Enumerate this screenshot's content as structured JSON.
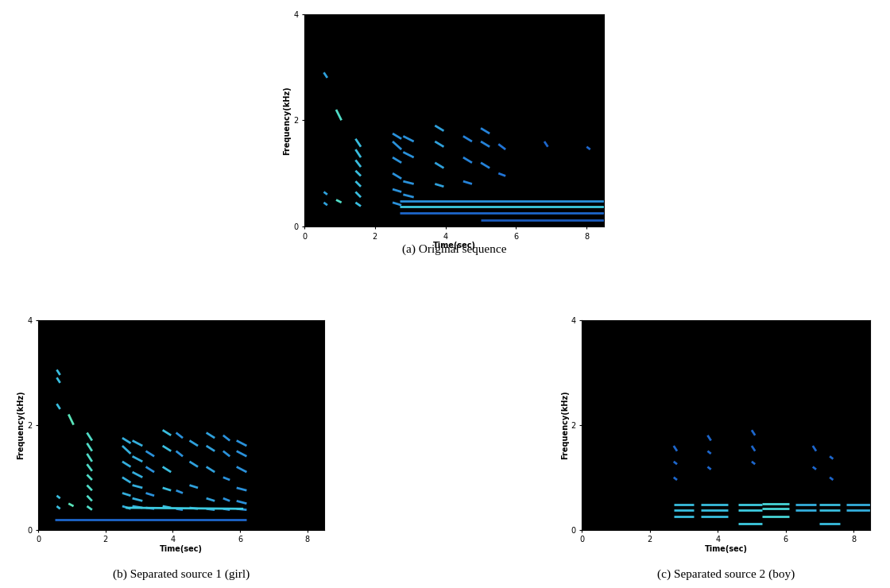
{
  "chart_data": [
    {
      "type": "spectrogram",
      "caption": "(a) Original sequence",
      "x_label": "Time(sec)",
      "y_label": "Frequency(kHz)",
      "xlim": [
        0,
        8.5
      ],
      "xticks": [
        0,
        2,
        4,
        6,
        8
      ],
      "ylim": [
        0,
        4
      ],
      "yticks": [
        0,
        2,
        4
      ],
      "bursts": [
        {
          "t": [
            0.55,
            0.65
          ],
          "f_start": [
            0.45,
            0.65,
            2.9
          ],
          "f_end": [
            0.4,
            0.6,
            2.8
          ],
          "level": 0.5
        },
        {
          "t": [
            0.9,
            1.05
          ],
          "f_start": [
            0.5,
            2.2
          ],
          "f_end": [
            0.45,
            2.0
          ],
          "level": 0.75
        },
        {
          "t": [
            1.45,
            1.6
          ],
          "f_start": [
            0.45,
            0.65,
            0.85,
            1.05,
            1.25,
            1.45,
            1.65
          ],
          "f_end": [
            0.38,
            0.55,
            0.75,
            0.95,
            1.12,
            1.3,
            1.5
          ],
          "level": 0.6
        },
        {
          "t": [
            2.5,
            2.75
          ],
          "f_start": [
            0.45,
            0.7,
            1.0,
            1.3,
            1.6,
            1.75
          ],
          "f_end": [
            0.4,
            0.65,
            0.9,
            1.2,
            1.45,
            1.65
          ],
          "level": 0.45
        },
        {
          "t": [
            2.8,
            3.1
          ],
          "f_start": [
            0.6,
            0.85,
            1.4,
            1.7
          ],
          "f_end": [
            0.55,
            0.8,
            1.3,
            1.6
          ],
          "level": 0.45
        },
        {
          "t": [
            3.7,
            3.95
          ],
          "f_start": [
            0.8,
            1.2,
            1.6,
            1.9
          ],
          "f_end": [
            0.75,
            1.1,
            1.5,
            1.8
          ],
          "level": 0.5
        },
        {
          "t": [
            4.5,
            4.75
          ],
          "f_start": [
            0.85,
            1.3,
            1.7
          ],
          "f_end": [
            0.8,
            1.2,
            1.6
          ],
          "level": 0.4
        },
        {
          "t": [
            5.0,
            5.25
          ],
          "f_start": [
            1.2,
            1.6,
            1.85
          ],
          "f_end": [
            1.1,
            1.5,
            1.75
          ],
          "level": 0.4
        },
        {
          "t": [
            5.5,
            5.7
          ],
          "f_start": [
            1.0,
            1.55
          ],
          "f_end": [
            0.95,
            1.45
          ],
          "level": 0.35
        },
        {
          "t": [
            6.8,
            6.9
          ],
          "f_start": [
            1.6
          ],
          "f_end": [
            1.5
          ],
          "level": 0.3
        },
        {
          "t": [
            8.0,
            8.1
          ],
          "f_start": [
            1.5
          ],
          "f_end": [
            1.45
          ],
          "level": 0.3
        },
        {
          "t": [
            2.7,
            8.5
          ],
          "f_start": [
            0.38
          ],
          "f_end": [
            0.38
          ],
          "level": 0.65
        },
        {
          "t": [
            2.7,
            8.5
          ],
          "f_start": [
            0.48
          ],
          "f_end": [
            0.48
          ],
          "level": 0.45
        },
        {
          "t": [
            2.7,
            8.5
          ],
          "f_start": [
            0.25
          ],
          "f_end": [
            0.25
          ],
          "level": 0.3
        },
        {
          "t": [
            5.0,
            8.5
          ],
          "f_start": [
            0.12
          ],
          "f_end": [
            0.12
          ],
          "level": 0.25
        }
      ]
    },
    {
      "type": "spectrogram",
      "caption": "(b) Separated source 1 (girl)",
      "x_label": "Time(sec)",
      "y_label": "Frequency(kHz)",
      "xlim": [
        0,
        8.5
      ],
      "xticks": [
        0,
        2,
        4,
        6,
        8
      ],
      "ylim": [
        0,
        4
      ],
      "yticks": [
        0,
        2,
        4
      ],
      "bursts": [
        {
          "t": [
            0.55,
            0.65
          ],
          "f_start": [
            0.45,
            0.65,
            2.4,
            2.9,
            3.05
          ],
          "f_end": [
            0.4,
            0.6,
            2.3,
            2.8,
            2.95
          ],
          "level": 0.6
        },
        {
          "t": [
            0.9,
            1.05
          ],
          "f_start": [
            0.5,
            2.2
          ],
          "f_end": [
            0.45,
            2.0
          ],
          "level": 0.8
        },
        {
          "t": [
            1.45,
            1.6
          ],
          "f_start": [
            0.45,
            0.65,
            0.85,
            1.05,
            1.25,
            1.45,
            1.65,
            1.85
          ],
          "f_end": [
            0.38,
            0.55,
            0.75,
            0.95,
            1.12,
            1.3,
            1.5,
            1.7
          ],
          "level": 0.75
        },
        {
          "t": [
            2.5,
            2.75
          ],
          "f_start": [
            0.45,
            0.7,
            1.0,
            1.3,
            1.6,
            1.75
          ],
          "f_end": [
            0.4,
            0.65,
            0.9,
            1.2,
            1.45,
            1.65
          ],
          "level": 0.55
        },
        {
          "t": [
            2.8,
            3.1
          ],
          "f_start": [
            0.45,
            0.6,
            0.85,
            1.1,
            1.4,
            1.7
          ],
          "f_end": [
            0.42,
            0.55,
            0.8,
            1.0,
            1.3,
            1.6
          ],
          "level": 0.55
        },
        {
          "t": [
            3.2,
            3.45
          ],
          "f_start": [
            0.42,
            0.7,
            1.2,
            1.5
          ],
          "f_end": [
            0.4,
            0.65,
            1.1,
            1.4
          ],
          "level": 0.45
        },
        {
          "t": [
            3.7,
            3.95
          ],
          "f_start": [
            0.45,
            0.8,
            1.2,
            1.6,
            1.9
          ],
          "f_end": [
            0.42,
            0.75,
            1.1,
            1.5,
            1.8
          ],
          "level": 0.6
        },
        {
          "t": [
            4.1,
            4.3
          ],
          "f_start": [
            0.4,
            0.75,
            1.5,
            1.85
          ],
          "f_end": [
            0.38,
            0.7,
            1.4,
            1.75
          ],
          "level": 0.45
        },
        {
          "t": [
            4.5,
            4.75
          ],
          "f_start": [
            0.42,
            0.85,
            1.3,
            1.7
          ],
          "f_end": [
            0.4,
            0.8,
            1.2,
            1.6
          ],
          "level": 0.5
        },
        {
          "t": [
            5.0,
            5.25
          ],
          "f_start": [
            0.4,
            0.6,
            1.2,
            1.6,
            1.85
          ],
          "f_end": [
            0.38,
            0.55,
            1.1,
            1.5,
            1.75
          ],
          "level": 0.5
        },
        {
          "t": [
            5.5,
            5.7
          ],
          "f_start": [
            0.4,
            0.6,
            1.0,
            1.5,
            1.8
          ],
          "f_end": [
            0.38,
            0.55,
            0.95,
            1.4,
            1.7
          ],
          "level": 0.45
        },
        {
          "t": [
            5.9,
            6.2
          ],
          "f_start": [
            0.4,
            0.55,
            0.8,
            1.2,
            1.5,
            1.7
          ],
          "f_end": [
            0.38,
            0.5,
            0.75,
            1.1,
            1.4,
            1.6
          ],
          "level": 0.45
        },
        {
          "t": [
            2.6,
            6.1
          ],
          "f_start": [
            0.42
          ],
          "f_end": [
            0.4
          ],
          "level": 0.65
        },
        {
          "t": [
            0.5,
            6.2
          ],
          "f_start": [
            0.2
          ],
          "f_end": [
            0.2
          ],
          "level": 0.3
        }
      ]
    },
    {
      "type": "spectrogram",
      "caption": "(c) Separated source 2 (boy)",
      "x_label": "Time(sec)",
      "y_label": "Frequency(kHz)",
      "xlim": [
        0,
        8.5
      ],
      "xticks": [
        0,
        2,
        4,
        6,
        8
      ],
      "ylim": [
        0,
        4
      ],
      "yticks": [
        0,
        2,
        4
      ],
      "bursts": [
        {
          "t": [
            2.7,
            3.3
          ],
          "f_start": [
            0.38,
            0.48,
            0.25
          ],
          "f_end": [
            0.38,
            0.48,
            0.25
          ],
          "level": 0.6
        },
        {
          "t": [
            3.5,
            4.3
          ],
          "f_start": [
            0.38,
            0.48,
            0.25
          ],
          "f_end": [
            0.38,
            0.48,
            0.25
          ],
          "level": 0.6
        },
        {
          "t": [
            4.6,
            5.3
          ],
          "f_start": [
            0.38,
            0.48,
            0.12
          ],
          "f_end": [
            0.38,
            0.48,
            0.12
          ],
          "level": 0.65
        },
        {
          "t": [
            5.3,
            6.1
          ],
          "f_start": [
            0.4,
            0.5,
            0.25
          ],
          "f_end": [
            0.4,
            0.5,
            0.25
          ],
          "level": 0.7
        },
        {
          "t": [
            6.3,
            6.9
          ],
          "f_start": [
            0.38,
            0.48
          ],
          "f_end": [
            0.38,
            0.48
          ],
          "level": 0.55
        },
        {
          "t": [
            7.0,
            7.6
          ],
          "f_start": [
            0.38,
            0.48,
            0.12
          ],
          "f_end": [
            0.38,
            0.48,
            0.12
          ],
          "level": 0.6
        },
        {
          "t": [
            7.8,
            8.5
          ],
          "f_start": [
            0.38,
            0.48
          ],
          "f_end": [
            0.38,
            0.48
          ],
          "level": 0.55
        },
        {
          "t": [
            2.7,
            2.8
          ],
          "f_start": [
            1.0,
            1.3,
            1.6
          ],
          "f_end": [
            0.95,
            1.25,
            1.5
          ],
          "level": 0.3
        },
        {
          "t": [
            3.7,
            3.8
          ],
          "f_start": [
            1.2,
            1.5,
            1.8
          ],
          "f_end": [
            1.15,
            1.45,
            1.7
          ],
          "level": 0.3
        },
        {
          "t": [
            5.0,
            5.1
          ],
          "f_start": [
            1.3,
            1.6,
            1.9
          ],
          "f_end": [
            1.25,
            1.5,
            1.8
          ],
          "level": 0.3
        },
        {
          "t": [
            6.8,
            6.9
          ],
          "f_start": [
            1.2,
            1.6
          ],
          "f_end": [
            1.15,
            1.5
          ],
          "level": 0.3
        },
        {
          "t": [
            7.3,
            7.4
          ],
          "f_start": [
            1.0,
            1.4
          ],
          "f_end": [
            0.95,
            1.35
          ],
          "level": 0.3
        }
      ]
    }
  ]
}
